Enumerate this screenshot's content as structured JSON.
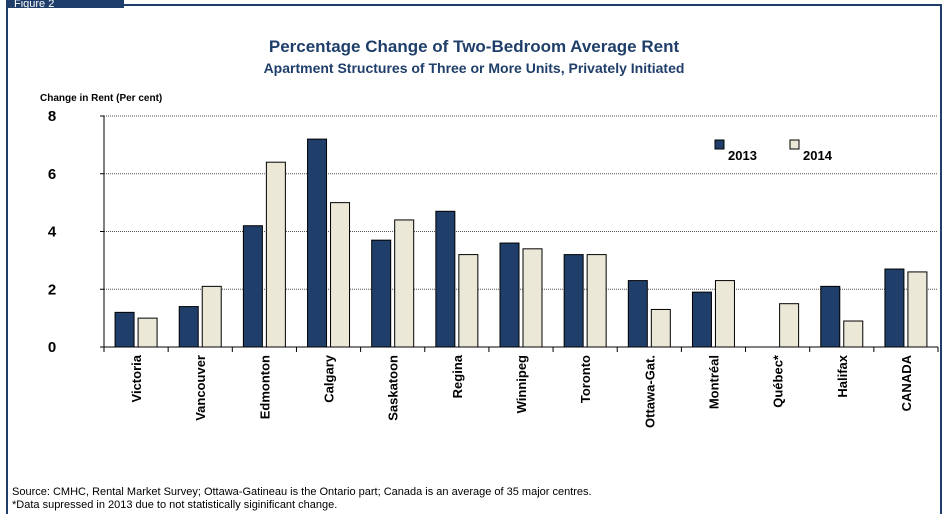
{
  "figure_tab": "Figure 2",
  "chart_data": {
    "type": "bar",
    "title": "Percentage Change of Two-Bedroom Average Rent",
    "subtitle": "Apartment Structures of Three or More Units, Privately Initiated",
    "ylabel": "Change in Rent (Per cent)",
    "xlabel": "",
    "ylim": [
      0,
      8
    ],
    "yticks": [
      0,
      2,
      4,
      6,
      8
    ],
    "grid": true,
    "legend_position": "top-right",
    "categories": [
      "Victoria",
      "Vancouver",
      "Edmonton",
      "Calgary",
      "Saskatoon",
      "Regina",
      "Winnipeg",
      "Toronto",
      "Ottawa-Gat.",
      "Montréal",
      "Québec*",
      "Halifax",
      "CANADA"
    ],
    "series": [
      {
        "name": "2013",
        "color": "#1f3f6a",
        "values": [
          1.2,
          1.4,
          4.2,
          7.2,
          3.7,
          4.7,
          3.6,
          3.2,
          2.3,
          1.9,
          null,
          2.1,
          2.7
        ]
      },
      {
        "name": "2014",
        "color": "#ece8d8",
        "values": [
          1.0,
          2.1,
          6.4,
          5.0,
          4.4,
          3.2,
          3.4,
          3.2,
          1.3,
          2.3,
          1.5,
          0.9,
          2.6
        ]
      }
    ]
  },
  "footnotes": [
    "Source: CMHC, Rental Market Survey; Ottawa-Gatineau is the Ontario part; Canada is an average of 35 major centres.",
    "*Data supressed in 2013 due to not statistically siginificant change."
  ]
}
